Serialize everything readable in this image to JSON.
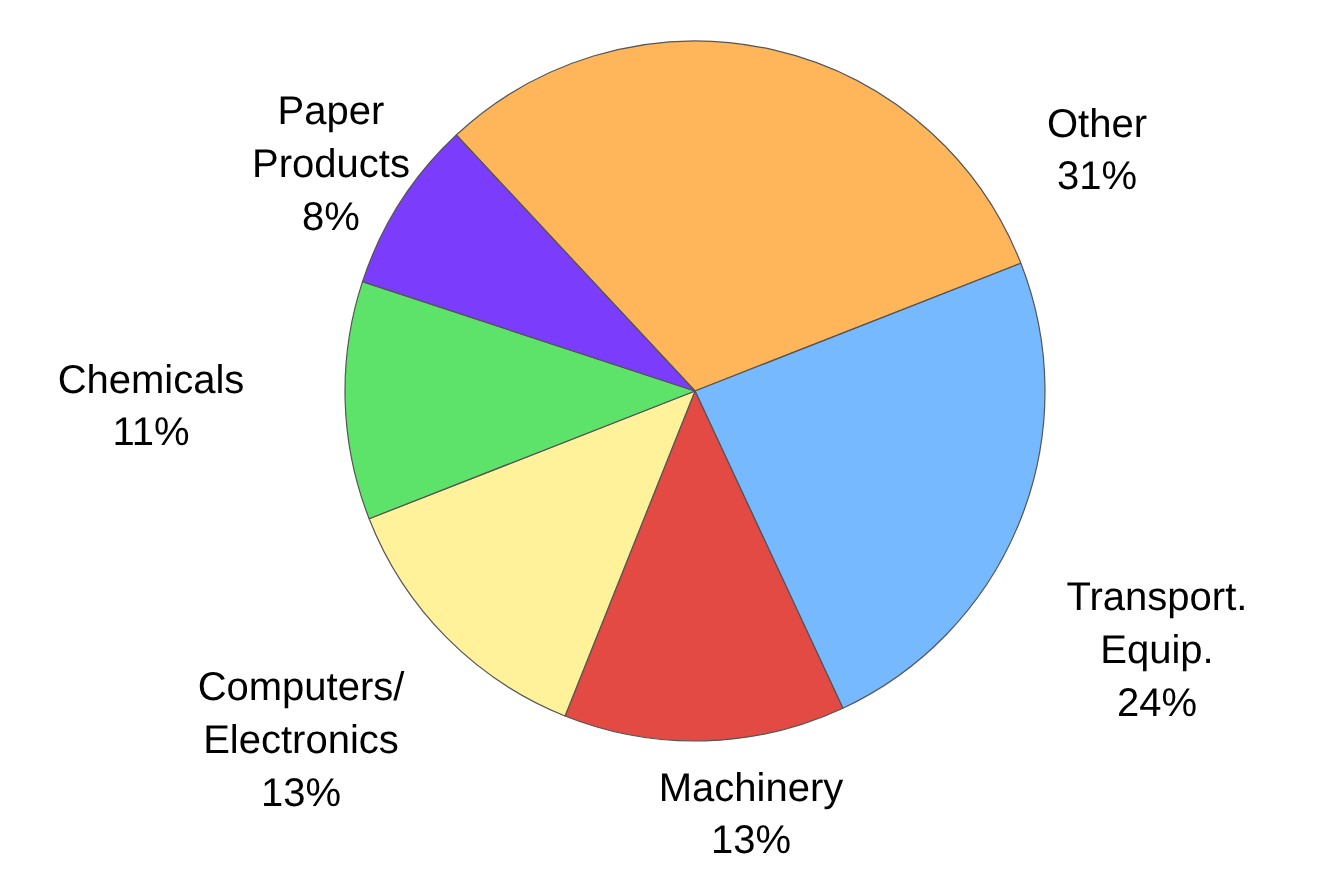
{
  "chart_data": {
    "type": "pie",
    "categories": [
      "Other",
      "Transport.\nEquip.",
      "Machinery",
      "Computers/\nElectronics",
      "Chemicals",
      "Paper\nProducts"
    ],
    "values": [
      31,
      24,
      13,
      13,
      11,
      8
    ],
    "value_labels": [
      "31%",
      "24%",
      "13%",
      "13%",
      "11%",
      "8%"
    ],
    "colors": [
      "#ffb55a",
      "#76b9ff",
      "#e34a44",
      "#fff29a",
      "#5de26a",
      "#7b3cfc"
    ]
  }
}
